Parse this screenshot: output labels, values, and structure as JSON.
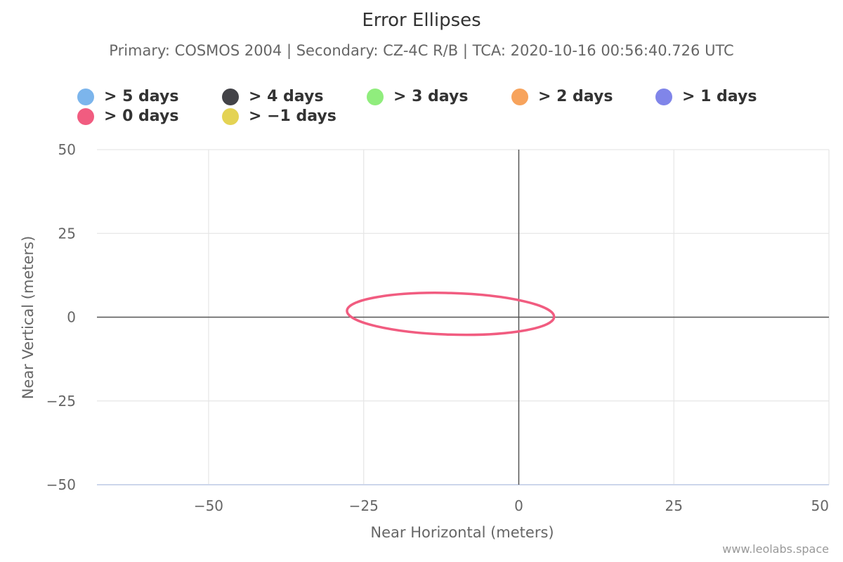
{
  "chart_data": {
    "type": "scatter",
    "title": "Error Ellipses",
    "subtitle": "Primary: COSMOS 2004 | Secondary: CZ-4C R/B | TCA: 2020-10-16 00:56:40.726 UTC",
    "xlabel": "Near Horizontal (meters)",
    "ylabel": "Near Vertical (meters)",
    "xlim": [
      -68,
      50
    ],
    "ylim": [
      -50,
      50
    ],
    "xticks": [
      -50,
      -25,
      0,
      25,
      50
    ],
    "yticks": [
      50,
      25,
      0,
      -25,
      -50
    ],
    "xtick_labels": [
      "−50",
      "−25",
      "0",
      "25",
      "50"
    ],
    "ytick_labels": [
      "50",
      "25",
      "0",
      "−25",
      "−50"
    ],
    "grid": true,
    "legend_position": "top",
    "legend": [
      {
        "label": "> 5 days",
        "color": "#7cb5ec"
      },
      {
        "label": "> 4 days",
        "color": "#434348"
      },
      {
        "label": "> 3 days",
        "color": "#90ed7d"
      },
      {
        "label": "> 2 days",
        "color": "#f7a35c"
      },
      {
        "label": "> 1 days",
        "color": "#8085e9"
      },
      {
        "label": "> 0 days",
        "color": "#f15c80"
      },
      {
        "label": "> −1 days",
        "color": "#e4d354"
      }
    ],
    "series": [
      {
        "name": "> 0 days",
        "color": "#f15c80",
        "shape": "ellipse",
        "center": [
          -11,
          1
        ],
        "semi_axis_major": 16.7,
        "semi_axis_minor": 6.2,
        "rotation_deg": -1.7
      }
    ]
  },
  "credits": "www.leolabs.space"
}
